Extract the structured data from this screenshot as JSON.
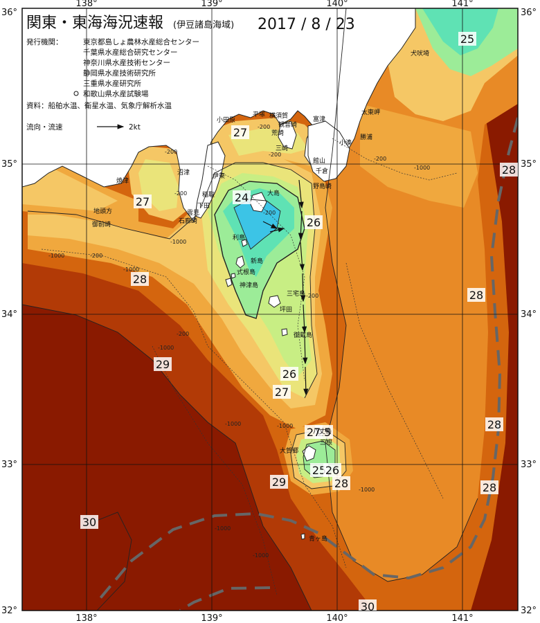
{
  "header": {
    "title": "関東・東海海況速報",
    "subtitle": "(伊豆諸島海域)",
    "date": "2017 / 8 / 23"
  },
  "agencies": {
    "heading": "発行機関：",
    "items": [
      "東京都島しょ農林水産総合センター",
      "千葉県水産総合研究センター",
      "神奈川県水産技術センター",
      "静岡県水産技術研究所",
      "三重県水産研究所",
      "和歌山県水産試験場"
    ],
    "source": "資料：船舶水温、衛星水温、気象庁解析水温"
  },
  "legend": {
    "label": "流向・流速",
    "speed": "2kt"
  },
  "axes": {
    "longitude_labels": [
      "138°",
      "139°",
      "140°",
      "141°"
    ],
    "latitude_labels": [
      "36°",
      "35°",
      "34°",
      "33°",
      "32°"
    ]
  },
  "isotherms": [
    "24",
    "25",
    "25",
    "25",
    "26",
    "26",
    "26",
    "27",
    "27",
    "27",
    "27",
    "28",
    "28",
    "28",
    "28",
    "28",
    "28",
    "29",
    "29",
    "30",
    "30"
  ],
  "depth_labels": [
    "-200",
    "-200",
    "-200",
    "-200",
    "-200",
    "-200",
    "-200",
    "-200",
    "-1000",
    "-1000",
    "-1000",
    "-1000",
    "-1000",
    "-1000",
    "-1000",
    "-1000",
    "-1000",
    "-200",
    "-1000"
  ],
  "places": [
    "犬吠埼",
    "太東岬",
    "勝浦",
    "小湊",
    "館山",
    "千倉",
    "野島崎",
    "富津",
    "横須賀",
    "観音崎",
    "平塚",
    "荒崎",
    "三崎",
    "小田原",
    "伊東",
    "稲取",
    "下田",
    "石廊崎",
    "雲見",
    "沼津",
    "焼津",
    "地頭方",
    "御前崎",
    "大島",
    "利島",
    "新島",
    "式根島",
    "神津島",
    "三宅島",
    "御蔵島",
    "坪田",
    "八丈島",
    "大賀郷",
    "三根",
    "青ヶ島"
  ],
  "colors": {
    "sst_30": "#8a1a00",
    "sst_29": "#b23a06",
    "sst_28": "#d4650e",
    "sst_27_5": "#e88a26",
    "sst_27": "#f0a83e",
    "sst_26_5": "#f5c765",
    "sst_26": "#eae47a",
    "sst_25_5": "#c8ee84",
    "sst_25": "#9cec98",
    "sst_24_5": "#5fe2b4",
    "sst_24": "#3cc4e6",
    "land": "#ffffff",
    "kuroshio_axis": "#666666"
  }
}
